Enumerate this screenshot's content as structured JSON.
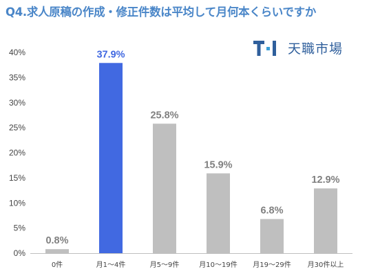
{
  "title": "Q4.求人原稿の作成・修正件数は平均して月何本くらいですか",
  "brand": {
    "name": "天職市場",
    "logo_icon": "tenshoku-ichiba-logo-icon"
  },
  "colors": {
    "title": "#4a86c8",
    "highlight": "#4169e1",
    "bar": "#bfbfbf",
    "highlight_label": "#4169e1",
    "label": "#808080",
    "brand": "#2f5f9c"
  },
  "chart_data": {
    "type": "bar",
    "categories": [
      "0件",
      "月1～4件",
      "月5～9件",
      "月10～19件",
      "月19～29件",
      "月30件以上"
    ],
    "values": [
      0.8,
      37.9,
      25.8,
      15.9,
      6.8,
      12.9
    ],
    "value_labels": [
      "0.8%",
      "37.9%",
      "25.8%",
      "15.9%",
      "6.8%",
      "12.9%"
    ],
    "highlight_index": 1,
    "ylim": [
      0,
      40
    ],
    "yticks": [
      0,
      5,
      10,
      15,
      20,
      25,
      30,
      35,
      40
    ],
    "ytick_labels": [
      "0%",
      "5%",
      "10%",
      "15%",
      "20%",
      "25%",
      "30%",
      "35%",
      "40%"
    ],
    "grid": false,
    "legend": "none"
  }
}
